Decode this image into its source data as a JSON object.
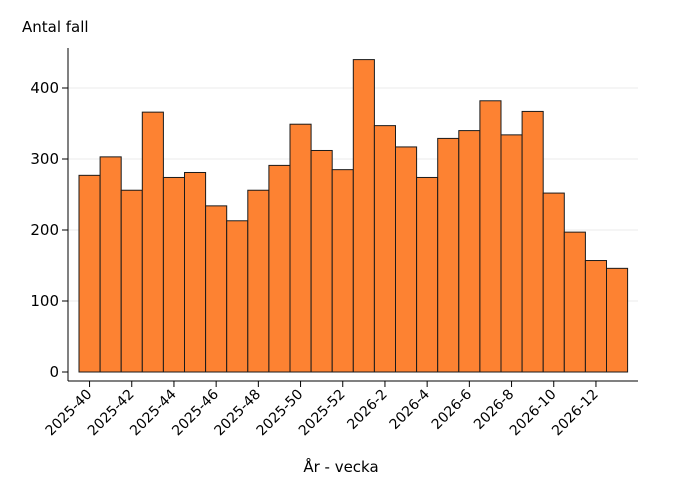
{
  "chart_data": {
    "type": "bar",
    "ylabel": "Antal fall",
    "xlabel": "År - vecka",
    "ylim": [
      0,
      450
    ],
    "yticks": [
      0,
      100,
      200,
      300,
      400
    ],
    "bar_color": "#fd8232",
    "bar_edge": "#1a1a1a",
    "grid": "horizontal",
    "categories": [
      "2025-40",
      "2025-41",
      "2025-42",
      "2025-43",
      "2025-44",
      "2025-45",
      "2025-46",
      "2025-47",
      "2025-48",
      "2025-49",
      "2025-50",
      "2025-51",
      "2025-52",
      "2026-1",
      "2026-2",
      "2026-3",
      "2026-4",
      "2026-5",
      "2026-6",
      "2026-7",
      "2026-8",
      "2026-9",
      "2026-10",
      "2026-11",
      "2026-12",
      "2026-13"
    ],
    "values": [
      277,
      303,
      256,
      366,
      274,
      281,
      234,
      213,
      256,
      291,
      349,
      312,
      285,
      440,
      347,
      317,
      274,
      329,
      340,
      382,
      334,
      367,
      252,
      197,
      157,
      146
    ],
    "tick_labels": [
      {
        "index": 0,
        "label": "2025-40"
      },
      {
        "index": 2,
        "label": "2025-42"
      },
      {
        "index": 4,
        "label": "2025-44"
      },
      {
        "index": 6,
        "label": "2025-46"
      },
      {
        "index": 8,
        "label": "2025-48"
      },
      {
        "index": 10,
        "label": "2025-50"
      },
      {
        "index": 12,
        "label": "2025-52"
      },
      {
        "index": 14,
        "label": "2026-2"
      },
      {
        "index": 16,
        "label": "2026-4"
      },
      {
        "index": 18,
        "label": "2026-6"
      },
      {
        "index": 20,
        "label": "2026-8"
      },
      {
        "index": 22,
        "label": "2026-10"
      },
      {
        "index": 24,
        "label": "2026-12"
      }
    ]
  }
}
